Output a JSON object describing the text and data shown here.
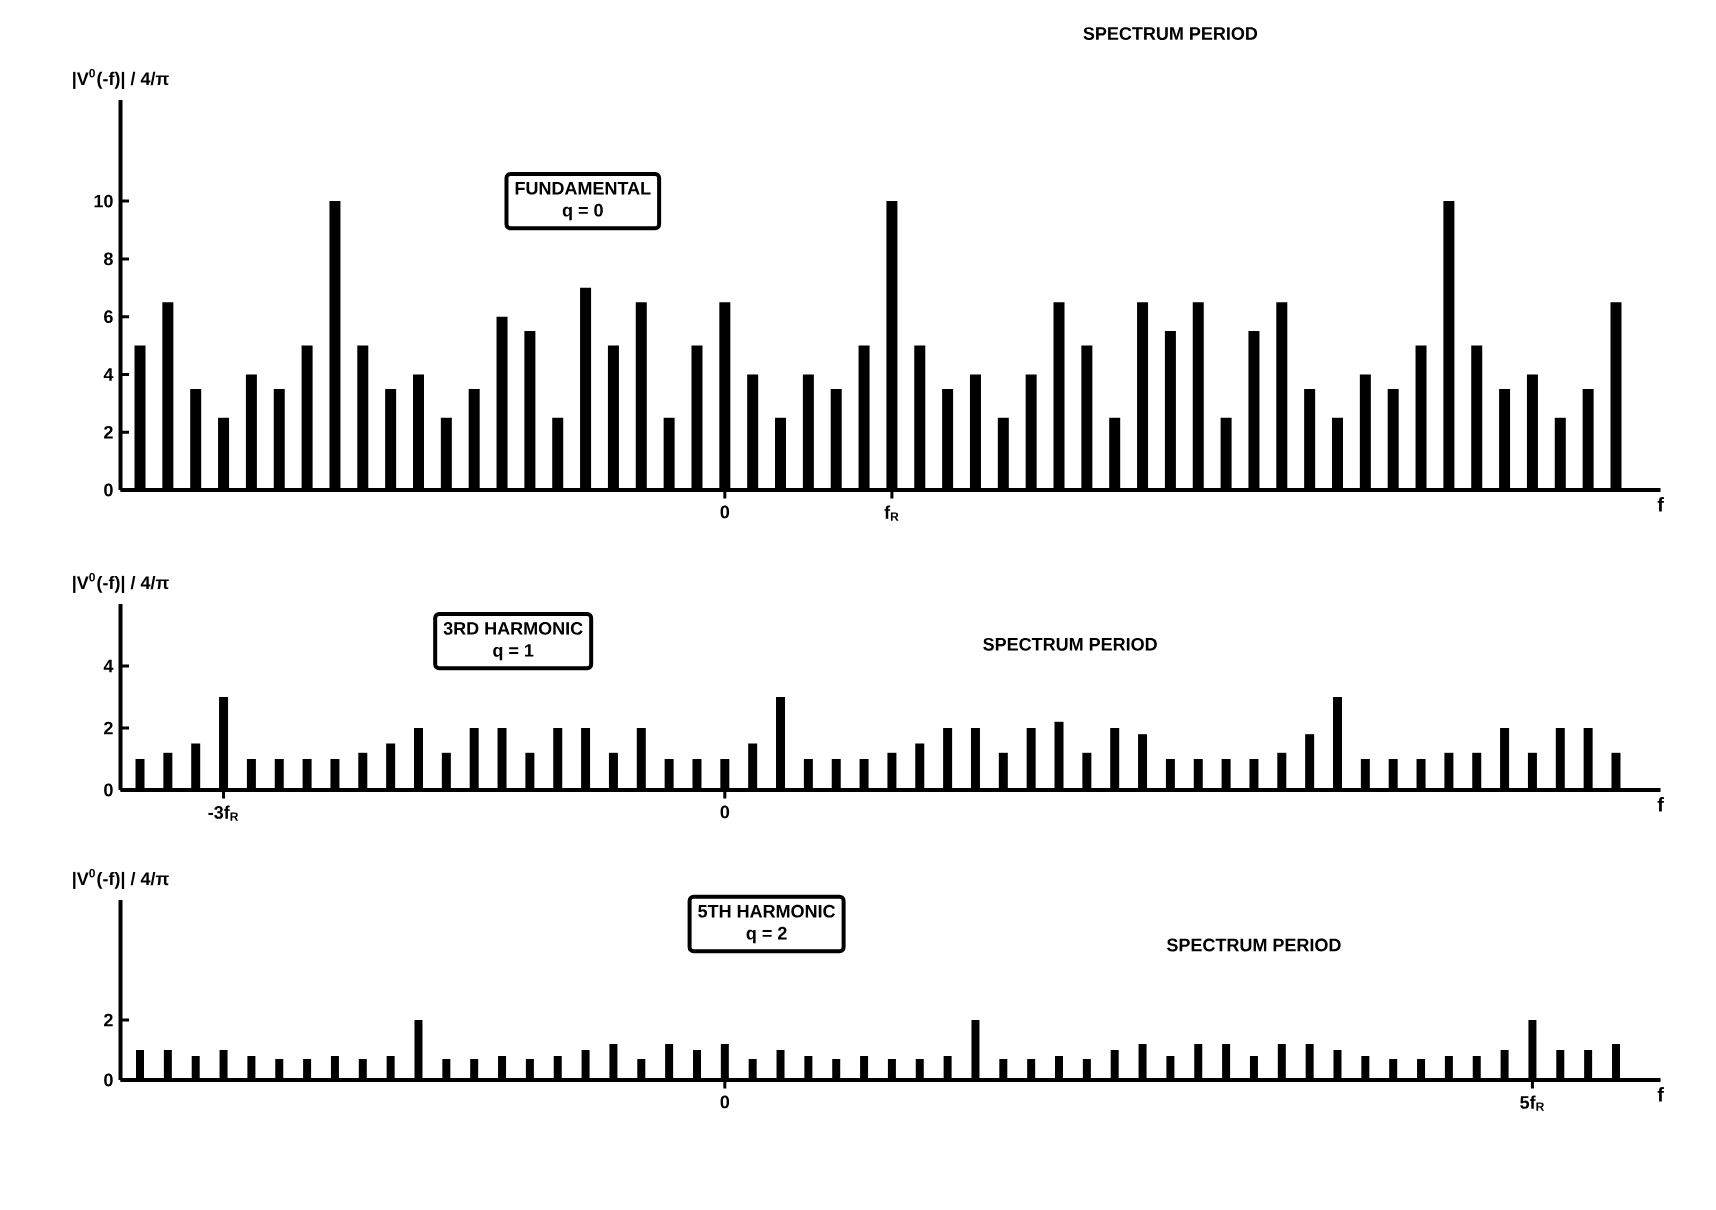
{
  "chart_data": [
    {
      "type": "bar",
      "ylabel": "|V$^{0}$(-f)| / 4/π",
      "xlabel": "f",
      "color": "#000000",
      "categories": [
        null,
        null,
        null,
        null,
        null,
        null,
        null,
        null,
        null,
        null,
        null,
        null,
        null,
        null,
        null,
        null,
        null,
        null,
        null,
        null,
        null,
        "0",
        null,
        null,
        null,
        null,
        null,
        "f$_{R}$",
        null,
        null,
        null,
        null,
        null,
        null,
        null,
        null,
        null,
        null,
        null,
        null,
        null,
        null,
        null,
        null,
        null,
        null,
        null,
        null,
        null,
        null,
        null,
        null,
        null,
        null
      ],
      "values": [
        5,
        6.5,
        3.5,
        2.5,
        4,
        3.5,
        5,
        10,
        5,
        3.5,
        4,
        2.5,
        3.5,
        6,
        5.5,
        2.5,
        7,
        5,
        6.5,
        2.5,
        5,
        6.5,
        4,
        2.5,
        4,
        3.5,
        5,
        10,
        5,
        3.5,
        4,
        2.5,
        4,
        6.5,
        5,
        2.5,
        6.5,
        5.5,
        6.5,
        2.5,
        5.5,
        6.5,
        3.5,
        2.5,
        4,
        3.5,
        5,
        10,
        5,
        3.5,
        4,
        2.5,
        3.5,
        6.5
      ],
      "ylim": [
        0,
        13.5
      ],
      "yticks": [
        0,
        2,
        4,
        6,
        8,
        10
      ],
      "annotations": [
        "FUNDAMENTAL",
        "q = 0",
        "SPECTRUM PERIOD"
      ]
    },
    {
      "type": "bar",
      "ylabel": "|V$^{0}$(-f)| / 4/π",
      "xlabel": "f",
      "color": "#000000",
      "categories": [
        null,
        null,
        null,
        "-3f$_{R}$",
        null,
        null,
        null,
        null,
        null,
        null,
        null,
        null,
        null,
        null,
        null,
        null,
        null,
        null,
        null,
        null,
        null,
        "0",
        null,
        null,
        null,
        null,
        null,
        null,
        null,
        null,
        null,
        null,
        null,
        null,
        null,
        null,
        null,
        null,
        null,
        null,
        null,
        null,
        null,
        null,
        null,
        null,
        null,
        null,
        null,
        null,
        null,
        null,
        null,
        null
      ],
      "values": [
        1,
        1.2,
        1.5,
        3,
        1,
        1,
        1,
        1,
        1.2,
        1.5,
        2,
        1.2,
        2,
        2,
        1.2,
        2,
        2,
        1.2,
        2,
        1,
        1,
        1,
        1.5,
        3,
        1,
        1,
        1,
        1.2,
        1.5,
        2,
        2,
        1.2,
        2,
        2.2,
        1.2,
        2,
        1.8,
        1,
        1,
        1,
        1,
        1.2,
        1.8,
        3,
        1,
        1,
        1,
        1.2,
        1.2,
        2,
        1.2,
        2,
        2,
        1.2
      ],
      "ylim": [
        0,
        6
      ],
      "yticks": [
        0,
        2,
        4
      ],
      "annotations": [
        "3RD HARMONIC",
        "q = 1",
        "SPECTRUM PERIOD"
      ]
    },
    {
      "type": "bar",
      "ylabel": "|V$^{0}$(-f)| / 4/π",
      "xlabel": "f",
      "color": "#000000",
      "categories": [
        null,
        null,
        null,
        null,
        null,
        null,
        null,
        null,
        null,
        null,
        null,
        null,
        null,
        null,
        null,
        null,
        null,
        null,
        null,
        null,
        null,
        "0",
        null,
        null,
        null,
        null,
        null,
        null,
        null,
        null,
        null,
        null,
        null,
        null,
        null,
        null,
        null,
        null,
        null,
        null,
        null,
        null,
        null,
        null,
        null,
        null,
        null,
        null,
        null,
        null,
        "5f$_{R}$",
        null,
        null,
        null
      ],
      "values": [
        1,
        1,
        0.8,
        1,
        0.8,
        0.7,
        0.7,
        0.8,
        0.7,
        0.8,
        2,
        0.7,
        0.7,
        0.8,
        0.7,
        0.8,
        1,
        1.2,
        0.7,
        1.2,
        1,
        1.2,
        0.7,
        1,
        0.8,
        0.7,
        0.8,
        0.7,
        0.7,
        0.8,
        2,
        0.7,
        0.7,
        0.8,
        0.7,
        1,
        1.2,
        0.8,
        1.2,
        1.2,
        0.8,
        1.2,
        1.2,
        1,
        0.8,
        0.7,
        0.7,
        0.8,
        0.8,
        1,
        2,
        1,
        1,
        1.2
      ],
      "ylim": [
        0,
        6
      ],
      "yticks": [
        0,
        2
      ],
      "annotations": [
        "5TH HARMONIC",
        "q = 2",
        "SPECTRUM PERIOD"
      ]
    }
  ]
}
